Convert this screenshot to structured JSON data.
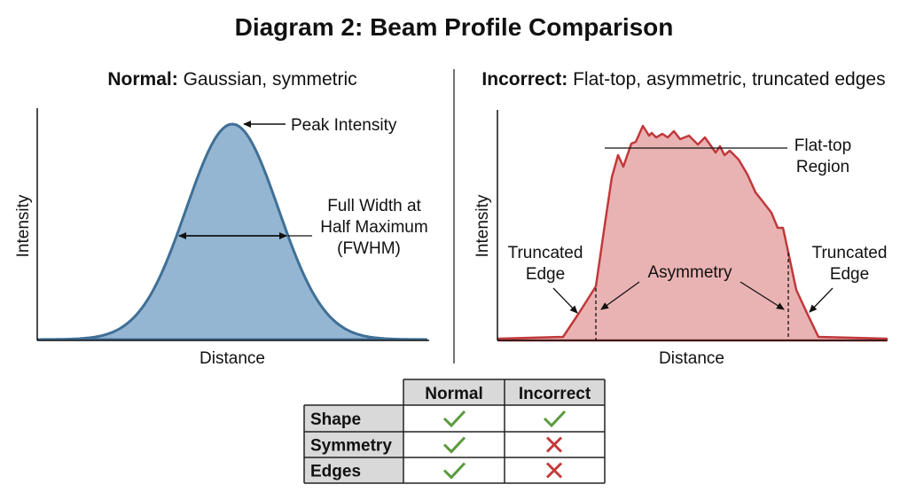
{
  "title": "Diagram 2: Beam Profile Comparison",
  "normal": {
    "heading_bold": "Normal:",
    "heading_rest": " Gaussian, symmetric",
    "y_label": "Intensity",
    "x_label": "Distance",
    "peak_label": "Peak Intensity",
    "fwhm_lines": [
      "Full Width at",
      "Half Maximum",
      "(FWHM)"
    ],
    "fill_color": "#94b6d2",
    "line_color": "#3f6f96"
  },
  "incorrect": {
    "heading_bold": "Incorrect:",
    "heading_rest": " Flat-top, asymmetric, truncated edges",
    "y_label": "Intensity",
    "x_label": "Distance",
    "flat_top_lines": [
      "Flat-top",
      "Region"
    ],
    "left_edge_lines": [
      "Truncated",
      "Edge"
    ],
    "right_edge_lines": [
      "Truncated",
      "Edge"
    ],
    "asymmetry_label": "Asymmetry",
    "fill_color": "#eab3b3",
    "line_color": "#c0393b"
  },
  "table": {
    "columns": [
      "Normal",
      "Incorrect"
    ],
    "rows": [
      {
        "label": "Shape",
        "normal": "check",
        "incorrect": "check"
      },
      {
        "label": "Symmetry",
        "normal": "check",
        "incorrect": "cross"
      },
      {
        "label": "Edges",
        "normal": "check",
        "incorrect": "cross"
      }
    ],
    "check_color": "#5a9a3e",
    "cross_color": "#c43a3a",
    "header_bg": "#d9d9d9"
  }
}
